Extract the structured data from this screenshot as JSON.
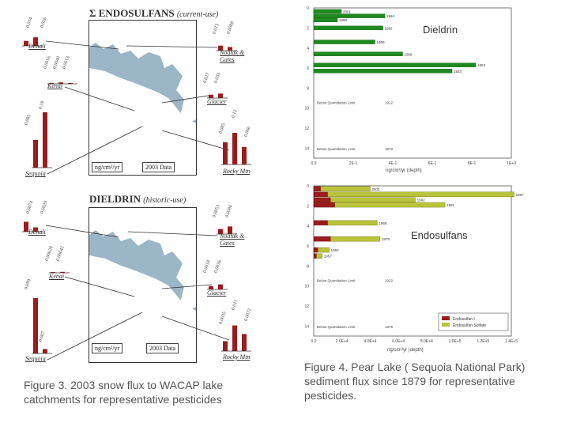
{
  "figure3": {
    "map1": {
      "title": "Σ ENDOSULFANS",
      "subtitle": "(current-use)",
      "unit": "ng/cm²/yr",
      "data_label": "2003 Data",
      "sites": [
        {
          "name": "Denali",
          "values": [
            "0.014",
            "0.026"
          ],
          "heights": [
            0.35,
            0.6
          ]
        },
        {
          "name": "Noatak & Gates",
          "values": [
            "0.013",
            "0.0088"
          ],
          "heights": [
            0.35,
            0.25
          ]
        },
        {
          "name": "Kenai",
          "values": [
            "0.0016",
            "0.0040",
            "0.0013"
          ],
          "heights": [
            0.12,
            0.18,
            0.1
          ]
        },
        {
          "name": "Glacier",
          "values": [
            "0.027",
            "0.033"
          ],
          "heights": [
            0.3,
            0.4
          ]
        },
        {
          "name": "Sequoia",
          "values": [
            "0.085",
            "0.18"
          ],
          "heights": [
            0.5,
            1.0
          ]
        },
        {
          "name": "Rocky Mtn",
          "values": [
            "0.085",
            "0.12",
            "0.066"
          ],
          "heights": [
            0.7,
            1.0,
            0.55
          ]
        }
      ]
    },
    "map2": {
      "title": "DIELDRIN",
      "subtitle": "(historic-use)",
      "unit": "ng/cm²/yr",
      "data_label": "2003 Data",
      "sites": [
        {
          "name": "Denali",
          "values": [
            "0.0074",
            "0.0029"
          ],
          "heights": [
            0.7,
            0.3
          ]
        },
        {
          "name": "Noatak & Gates",
          "values": [
            "0.0053",
            "0.0080"
          ],
          "heights": [
            0.4,
            0.6
          ]
        },
        {
          "name": "Kenai",
          "values": [
            "0.00028",
            "0.00042"
          ],
          "heights": [
            0.1,
            0.12
          ]
        },
        {
          "name": "Glacier",
          "values": [
            "0.0018",
            "0.0036"
          ],
          "heights": [
            0.3,
            0.45
          ]
        },
        {
          "name": "Sequoia",
          "values": [
            "0.099",
            "0.007"
          ],
          "heights": [
            1.0,
            0.08
          ]
        },
        {
          "name": "Rocky Mtn",
          "values": [
            "0.0035",
            "0.011",
            "0.0072"
          ],
          "heights": [
            0.35,
            0.9,
            0.6
          ]
        }
      ]
    },
    "caption": "Figure 3.  2003 snow flux to WACAP lake catchments for representative pesticides"
  },
  "figure4": {
    "dieldrin": {
      "title": "Dieldrin",
      "ylabels": [
        "0",
        "2",
        "4",
        "6",
        "8",
        "10",
        "12",
        "14"
      ],
      "xticks": [
        "0.0",
        "2E-1",
        "4E-1",
        "6E-1",
        "8E-1",
        "1E+0"
      ],
      "xlabel": "ng/cm²/yr (depth)",
      "bars": [
        {
          "year": "2001",
          "value": 0.14,
          "depth": 0.35
        },
        {
          "year": "1994",
          "value": 0.36,
          "depth": 0.8
        },
        {
          "year": "1990",
          "value": 0.12,
          "depth": 1.2
        },
        {
          "year": "1982",
          "value": 0.35,
          "depth": 2.0
        },
        {
          "year": "1969",
          "value": 0.31,
          "depth": 3.4
        },
        {
          "year": "1958",
          "value": 0.45,
          "depth": 4.6
        },
        {
          "year": "1953",
          "value": 0.82,
          "depth": 5.7
        },
        {
          "year": "1923",
          "value": 0.7,
          "depth": 6.3
        }
      ],
      "notes": [
        {
          "text": "Below Quantitation Limit",
          "year": "1912",
          "depth": 9.6
        },
        {
          "text": "Below Quantitation Limit",
          "year": "1879",
          "depth": 14.2
        }
      ]
    },
    "endosulfans": {
      "title": "Endosulfans",
      "ylabels": [
        "0",
        "2",
        "4",
        "6",
        "8",
        "10",
        "12",
        "14"
      ],
      "xticks": [
        "0.0",
        "2.0E+4",
        "4.0E+4",
        "6.0E+4",
        "8.0E+4",
        "1.0E+5",
        "1.2E+5",
        "1.4E+5"
      ],
      "xlabel": "ng/cm²/yr (depth)",
      "legend": [
        "Endosulfan I",
        "Endosulfan Sulfate"
      ],
      "colors": {
        "dieldrin": "#1f8a1f",
        "endo1": "#9b1c1c",
        "endoS": "#b9c43a"
      },
      "bars": [
        {
          "year": "2003",
          "e1": 0.05,
          "es": 0.35,
          "depth": 0.3
        },
        {
          "year": "1997",
          "e1": 0.1,
          "es": 1.32,
          "depth": 0.85
        },
        {
          "year": "1992",
          "e1": 0.12,
          "es": 0.6,
          "depth": 1.4
        },
        {
          "year": "1981",
          "e1": 0.15,
          "es": 0.78,
          "depth": 1.9
        },
        {
          "year": "1968",
          "e1": 0.1,
          "es": 0.35,
          "depth": 3.7
        },
        {
          "year": "1978",
          "e1": 0.12,
          "es": 0.35,
          "depth": 5.3
        },
        {
          "year": "1962",
          "e1": 0.03,
          "es": 0.08,
          "depth": 6.4
        },
        {
          "year": "1957",
          "e1": 0.02,
          "es": 0.04,
          "depth": 7.0
        }
      ],
      "notes": [
        {
          "text": "Below Quantitation Limit",
          "year": "1922",
          "depth": 9.6
        },
        {
          "text": "Below Quantitation Limit",
          "year": "1879",
          "depth": 14.2
        }
      ]
    },
    "caption": "Figure 4.  Pear Lake ( Sequoia National Park) sediment flux since 1879 for representative pesticides."
  }
}
